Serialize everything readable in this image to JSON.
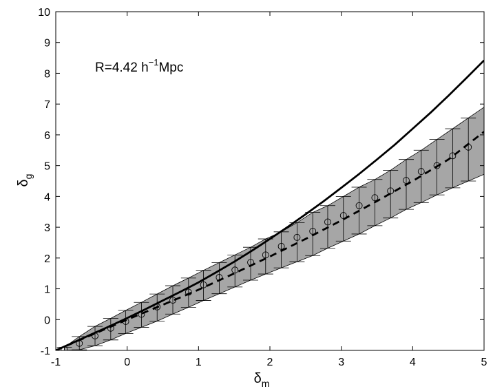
{
  "chart_data": {
    "type": "line",
    "xlabel": {
      "symbol": "δ",
      "subscript": "m"
    },
    "ylabel": {
      "symbol": "δ",
      "subscript": "g"
    },
    "xlim": [
      -1,
      5
    ],
    "ylim": [
      -1,
      10
    ],
    "xticks": [
      -1,
      0,
      1,
      2,
      3,
      4,
      5
    ],
    "yticks": [
      -1,
      0,
      1,
      2,
      3,
      4,
      5,
      6,
      7,
      8,
      9,
      10
    ],
    "grid": false,
    "legend": "none",
    "annotation": {
      "prefix": "R=4.42 h",
      "superscript": "−1",
      "suffix": "Mpc"
    },
    "series": [
      {
        "style": "solid",
        "color": "#000000",
        "x": [
          -1.0,
          -0.75,
          -0.5,
          -0.25,
          0.0,
          0.25,
          0.5,
          0.75,
          1.0,
          1.25,
          1.5,
          1.75,
          2.0,
          2.25,
          2.5,
          2.75,
          3.0,
          3.25,
          3.5,
          3.75,
          4.0,
          4.25,
          4.5,
          4.75,
          5.0
        ],
        "y": [
          -1.0,
          -0.74,
          -0.48,
          -0.22,
          0.05,
          0.33,
          0.62,
          0.91,
          1.21,
          1.54,
          1.88,
          2.24,
          2.62,
          3.01,
          3.42,
          3.84,
          4.28,
          4.73,
          5.2,
          5.68,
          6.2,
          6.72,
          7.27,
          7.84,
          8.42
        ]
      },
      {
        "style": "dashed",
        "color": "#000000",
        "x": [
          -1.0,
          -0.5,
          0.0,
          0.5,
          1.0,
          1.5,
          2.0,
          2.5,
          3.0,
          3.5,
          4.0,
          4.5,
          5.0
        ],
        "y": [
          -1.0,
          -0.5,
          0.0,
          0.48,
          0.97,
          1.5,
          2.05,
          2.62,
          3.22,
          3.85,
          4.5,
          5.2,
          6.1
        ]
      },
      {
        "style": "circles",
        "color": "#000000",
        "x": [
          -0.88,
          -0.67,
          -0.45,
          -0.23,
          -0.02,
          0.2,
          0.42,
          0.64,
          0.86,
          1.07,
          1.29,
          1.51,
          1.73,
          1.94,
          2.16,
          2.38,
          2.6,
          2.81,
          3.03,
          3.25,
          3.47,
          3.69,
          3.91,
          4.12,
          4.34,
          4.56,
          4.78
        ],
        "y": [
          -0.97,
          -0.77,
          -0.53,
          -0.28,
          -0.06,
          0.17,
          0.41,
          0.63,
          0.89,
          1.13,
          1.37,
          1.61,
          1.86,
          2.1,
          2.38,
          2.67,
          2.87,
          3.17,
          3.38,
          3.7,
          3.96,
          4.18,
          4.52,
          4.81,
          5.0,
          5.32,
          5.6
        ]
      }
    ],
    "band": {
      "color": "#a6a6a6",
      "x": [
        -0.88,
        -0.67,
        -0.45,
        -0.23,
        -0.02,
        0.2,
        0.42,
        0.64,
        0.86,
        1.07,
        1.29,
        1.51,
        1.73,
        1.94,
        2.16,
        2.38,
        2.6,
        2.81,
        3.03,
        3.25,
        3.47,
        3.69,
        3.91,
        4.12,
        4.34,
        4.56,
        4.78,
        5.0
      ],
      "upper": [
        -0.9,
        -0.55,
        -0.22,
        0.04,
        0.3,
        0.56,
        0.83,
        1.1,
        1.35,
        1.6,
        1.85,
        2.1,
        2.35,
        2.62,
        2.85,
        3.15,
        3.48,
        3.7,
        4.0,
        4.3,
        4.55,
        4.85,
        5.2,
        5.5,
        5.85,
        6.2,
        6.55,
        6.9
      ],
      "lower": [
        -1.0,
        -0.98,
        -0.85,
        -0.66,
        -0.45,
        -0.25,
        -0.05,
        0.18,
        0.4,
        0.62,
        0.84,
        1.06,
        1.28,
        1.48,
        1.68,
        1.88,
        2.08,
        2.32,
        2.55,
        2.78,
        3.05,
        3.3,
        3.58,
        3.8,
        4.05,
        4.28,
        4.5,
        4.72
      ]
    },
    "errorbars": {
      "x": [
        -0.88,
        -0.67,
        -0.45,
        -0.23,
        -0.02,
        0.2,
        0.42,
        0.64,
        0.86,
        1.07,
        1.29,
        1.51,
        1.73,
        1.94,
        2.16,
        2.38,
        2.6,
        2.81,
        3.03,
        3.25,
        3.47,
        3.69,
        3.91,
        4.12,
        4.34,
        4.56,
        4.78
      ],
      "upper": [
        -0.9,
        -0.55,
        -0.22,
        0.04,
        0.3,
        0.56,
        0.83,
        1.1,
        1.35,
        1.6,
        1.85,
        2.1,
        2.35,
        2.62,
        2.85,
        3.15,
        3.48,
        3.7,
        4.0,
        4.3,
        4.55,
        4.85,
        5.2,
        5.5,
        5.85,
        6.2,
        6.55
      ],
      "lower": [
        -1.0,
        -0.98,
        -0.85,
        -0.66,
        -0.45,
        -0.25,
        -0.05,
        0.18,
        0.4,
        0.62,
        0.84,
        1.06,
        1.28,
        1.48,
        1.68,
        1.88,
        2.08,
        2.32,
        2.55,
        2.78,
        3.05,
        3.3,
        3.58,
        3.8,
        4.05,
        4.28,
        4.5
      ]
    }
  }
}
